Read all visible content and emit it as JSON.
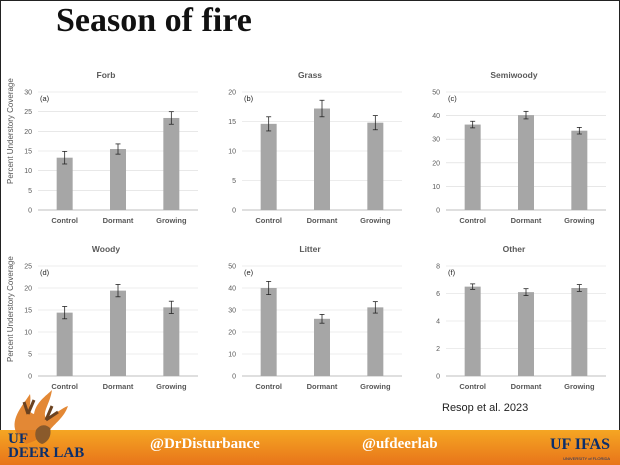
{
  "slide": {
    "title": "Season of fire",
    "y_axis_label": "Percent Understory Coverage",
    "credit": "Resop et al. 2023"
  },
  "footer": {
    "handle_left": "@DrDisturbance",
    "handle_right": "@ufdeerlab",
    "logo_left_top": "UF",
    "logo_left_bottom": "DEER LAB",
    "logo_right": "UF IFAS",
    "logo_right_sub": "UNIVERSITY of FLORIDA",
    "color_bar": "#f08a1e",
    "color_logo": "#0b2e6b"
  },
  "chart_data": [
    {
      "type": "bar",
      "title": "Forb",
      "panel": "(a)",
      "categories": [
        "Control",
        "Dormant",
        "Growing"
      ],
      "values": [
        13.3,
        15.5,
        23.4
      ],
      "errors": [
        1.6,
        1.3,
        1.6
      ],
      "ylim": [
        0,
        30
      ],
      "yticks": [
        0,
        5,
        10,
        15,
        20,
        25,
        30
      ],
      "grid": true,
      "bar_color": "#a6a6a6"
    },
    {
      "type": "bar",
      "title": "Grass",
      "panel": "(b)",
      "categories": [
        "Control",
        "Dormant",
        "Growing"
      ],
      "values": [
        14.6,
        17.2,
        14.8
      ],
      "errors": [
        1.2,
        1.4,
        1.2
      ],
      "ylim": [
        0,
        20
      ],
      "yticks": [
        0,
        5,
        10,
        15,
        20
      ],
      "grid": true,
      "bar_color": "#a6a6a6"
    },
    {
      "type": "bar",
      "title": "Semiwoody",
      "panel": "(c)",
      "categories": [
        "Control",
        "Dormant",
        "Growing"
      ],
      "values": [
        36.2,
        40.2,
        33.6
      ],
      "errors": [
        1.4,
        1.6,
        1.4
      ],
      "ylim": [
        0,
        50
      ],
      "yticks": [
        0,
        10,
        20,
        30,
        40,
        50
      ],
      "grid": true,
      "bar_color": "#a6a6a6"
    },
    {
      "type": "bar",
      "title": "Woody",
      "panel": "(d)",
      "categories": [
        "Control",
        "Dormant",
        "Growing"
      ],
      "values": [
        14.4,
        19.4,
        15.6
      ],
      "errors": [
        1.4,
        1.4,
        1.4
      ],
      "ylim": [
        0,
        25
      ],
      "yticks": [
        0,
        5,
        10,
        15,
        20,
        25
      ],
      "grid": true,
      "bar_color": "#a6a6a6"
    },
    {
      "type": "bar",
      "title": "Litter",
      "panel": "(e)",
      "categories": [
        "Control",
        "Dormant",
        "Growing"
      ],
      "values": [
        40,
        26,
        31.2
      ],
      "errors": [
        3.0,
        2.0,
        2.6
      ],
      "ylim": [
        0,
        50
      ],
      "yticks": [
        0,
        10,
        20,
        30,
        40,
        50
      ],
      "grid": true,
      "bar_color": "#a6a6a6"
    },
    {
      "type": "bar",
      "title": "Other",
      "panel": "(f)",
      "categories": [
        "Control",
        "Dormant",
        "Growing"
      ],
      "values": [
        6.5,
        6.1,
        6.4
      ],
      "errors": [
        0.2,
        0.25,
        0.25
      ],
      "ylim": [
        0,
        8
      ],
      "yticks": [
        0,
        2,
        4,
        6,
        8
      ],
      "grid": true,
      "bar_color": "#a6a6a6"
    }
  ]
}
